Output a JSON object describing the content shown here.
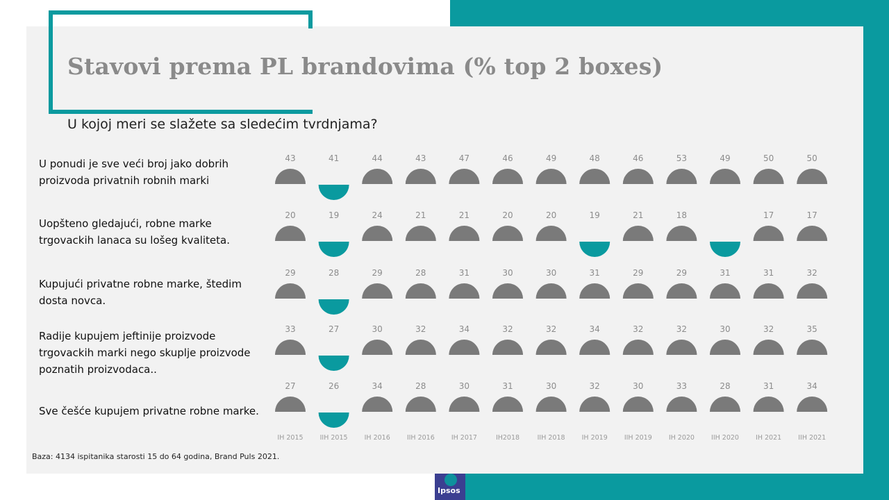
{
  "title": "Stavovi prema PL brandovima (% top 2 boxes)",
  "subtitle": "U kojoj meri se slažete sa sledećim tvrdnjama?",
  "footnote": "Baza: 4134 ispitanika starosti 15 do 64 godina, Brand Puls 2021.",
  "logo_text": "Ipsos",
  "colors": {
    "accent": "#0a9a9f",
    "neutral": "#7a7a7a",
    "label": "#8c8c8c"
  },
  "statements": [
    "U ponudi je sve veći broj jako dobrih proizvoda privatnih robnih marki",
    "Uopšteno gledajući, robne marke trgovackih lanaca su lošeg kvaliteta.",
    "Kupujući privatne robne marke, štedim dosta novca.",
    "Radije kupujem jeftinije proizvode trgovackih marki nego skuplje proizvode poznatih proizvodaca..",
    "Sve češće kupujem privatne robne marke."
  ],
  "chart_data": {
    "type": "table",
    "categories": [
      "IH 2015",
      "IIH 2015",
      "IH 2016",
      "IIH 2016",
      "IH 2017",
      "IH2018",
      "IIH 2018",
      "IH 2019",
      "IIH 2019",
      "IH 2020",
      "IIH 2020",
      "IH 2021",
      "IIH 2021"
    ],
    "series": [
      {
        "name": "U ponudi je sve veći broj jako dobrih proizvoda privatnih robnih marki",
        "values": [
          43,
          41,
          44,
          43,
          47,
          46,
          49,
          48,
          46,
          53,
          49,
          50,
          50
        ],
        "marker": [
          "up",
          "down",
          "up",
          "up",
          "up",
          "up",
          "up",
          "up",
          "up",
          "up",
          "up",
          "up",
          "up"
        ]
      },
      {
        "name": "Uopšteno gledajući, robne marke trgovackih lanaca su lošeg kvaliteta.",
        "values": [
          20,
          19,
          24,
          21,
          21,
          20,
          20,
          19,
          21,
          18,
          null,
          17,
          17
        ],
        "marker": [
          "up",
          "down",
          "up",
          "up",
          "up",
          "up",
          "up",
          "down",
          "up",
          "up",
          "down",
          "up",
          "up"
        ]
      },
      {
        "name": "Kupujući privatne robne marke, štedim dosta novca.",
        "values": [
          29,
          28,
          29,
          28,
          31,
          30,
          30,
          31,
          29,
          29,
          31,
          31,
          32
        ],
        "marker": [
          "up",
          "down",
          "up",
          "up",
          "up",
          "up",
          "up",
          "up",
          "up",
          "up",
          "up",
          "up",
          "up"
        ]
      },
      {
        "name": "Radije kupujem jeftinije proizvode trgovackih marki nego skuplje proizvode poznatih proizvodaca..",
        "values": [
          33,
          27,
          30,
          32,
          34,
          32,
          32,
          34,
          32,
          32,
          30,
          32,
          35
        ],
        "marker": [
          "up",
          "down",
          "up",
          "up",
          "up",
          "up",
          "up",
          "up",
          "up",
          "up",
          "up",
          "up",
          "up"
        ]
      },
      {
        "name": "Sve češće kupujem privatne robne marke.",
        "values": [
          27,
          26,
          34,
          28,
          30,
          31,
          30,
          32,
          30,
          33,
          28,
          31,
          34
        ],
        "marker": [
          "up",
          "down",
          "up",
          "up",
          "up",
          "up",
          "up",
          "up",
          "up",
          "up",
          "up",
          "up",
          "up"
        ]
      }
    ]
  }
}
